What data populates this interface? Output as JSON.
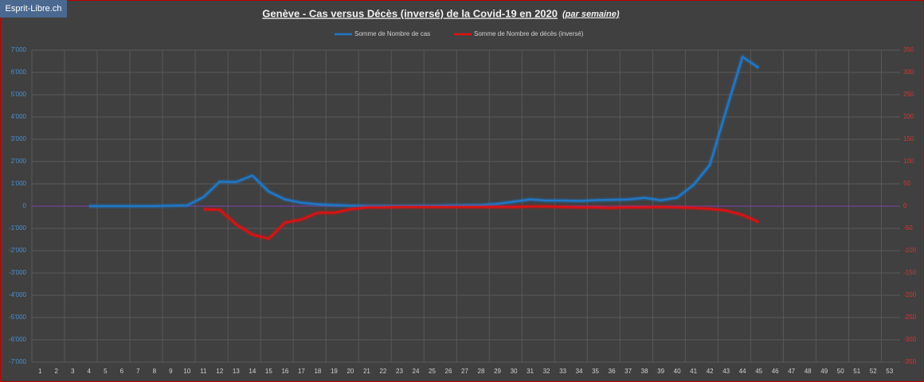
{
  "watermark": "Esprit-Libre.ch",
  "chart_data": {
    "type": "line",
    "title": "Genève - Cas versus Décès (inversé) de la Covid-19 en 2020",
    "subtitle": "(par semaine)",
    "categories": [
      "1",
      "2",
      "3",
      "4",
      "5",
      "6",
      "7",
      "8",
      "9",
      "10",
      "11",
      "12",
      "13",
      "14",
      "15",
      "16",
      "17",
      "18",
      "19",
      "20",
      "21",
      "22",
      "23",
      "24",
      "25",
      "26",
      "27",
      "28",
      "29",
      "30",
      "31",
      "32",
      "33",
      "34",
      "35",
      "36",
      "37",
      "38",
      "39",
      "40",
      "41",
      "42",
      "43",
      "44",
      "45",
      "46",
      "47",
      "48",
      "49",
      "50",
      "51",
      "52",
      "53"
    ],
    "series": [
      {
        "name": "Somme de Nombre de cas",
        "color": "#1f78c8",
        "axis": "y",
        "values": [
          null,
          null,
          null,
          0,
          0,
          0,
          0,
          0,
          20,
          30,
          400,
          1100,
          1080,
          1370,
          650,
          300,
          150,
          80,
          50,
          20,
          10,
          10,
          10,
          20,
          20,
          30,
          40,
          50,
          100,
          200,
          300,
          250,
          250,
          230,
          270,
          280,
          300,
          370,
          260,
          380,
          950,
          1850,
          4300,
          6700,
          6200,
          null,
          null,
          null,
          null,
          null,
          null,
          null,
          null
        ]
      },
      {
        "name": "Somme de Nombre de décès (inversé)",
        "color": "#e01010",
        "axis": "y2",
        "values": [
          null,
          null,
          null,
          null,
          null,
          null,
          null,
          null,
          null,
          null,
          -7,
          -8,
          -41,
          -64,
          -73,
          -37,
          -30,
          -15,
          -15,
          -7,
          -3,
          -3,
          -2,
          -2,
          -2,
          -2,
          -2,
          -2,
          -2,
          -2,
          -1,
          -1,
          -2,
          -3,
          -3,
          -4,
          -3,
          -3,
          -2,
          -3,
          -4,
          -6,
          -10,
          -20,
          -36,
          null,
          null,
          null,
          null,
          null,
          null,
          null,
          null
        ]
      }
    ],
    "ylim": [
      -7000,
      7000
    ],
    "yticks": [
      {
        "value": -7000,
        "label": "-7'000"
      },
      {
        "value": -6000,
        "label": "-6'000"
      },
      {
        "value": -5000,
        "label": "-5'000"
      },
      {
        "value": -4000,
        "label": "-4'000"
      },
      {
        "value": -3000,
        "label": "-3'000"
      },
      {
        "value": -2000,
        "label": "-2'000"
      },
      {
        "value": -1000,
        "label": "-1'000"
      },
      0,
      {
        "value": 1000,
        "label": "1'000"
      },
      {
        "value": 2000,
        "label": "2'000"
      },
      {
        "value": 3000,
        "label": "3'000"
      },
      {
        "value": 4000,
        "label": "4'000"
      },
      {
        "value": 5000,
        "label": "5'000"
      },
      {
        "value": 6000,
        "label": "6'000"
      },
      {
        "value": 7000,
        "label": "7'000"
      }
    ],
    "y2lim": [
      -350,
      350
    ],
    "y2ticks": [
      -350,
      -300,
      -250,
      -200,
      -150,
      -100,
      -50,
      0,
      50,
      100,
      150,
      200,
      250,
      300,
      350
    ],
    "grid": true
  }
}
